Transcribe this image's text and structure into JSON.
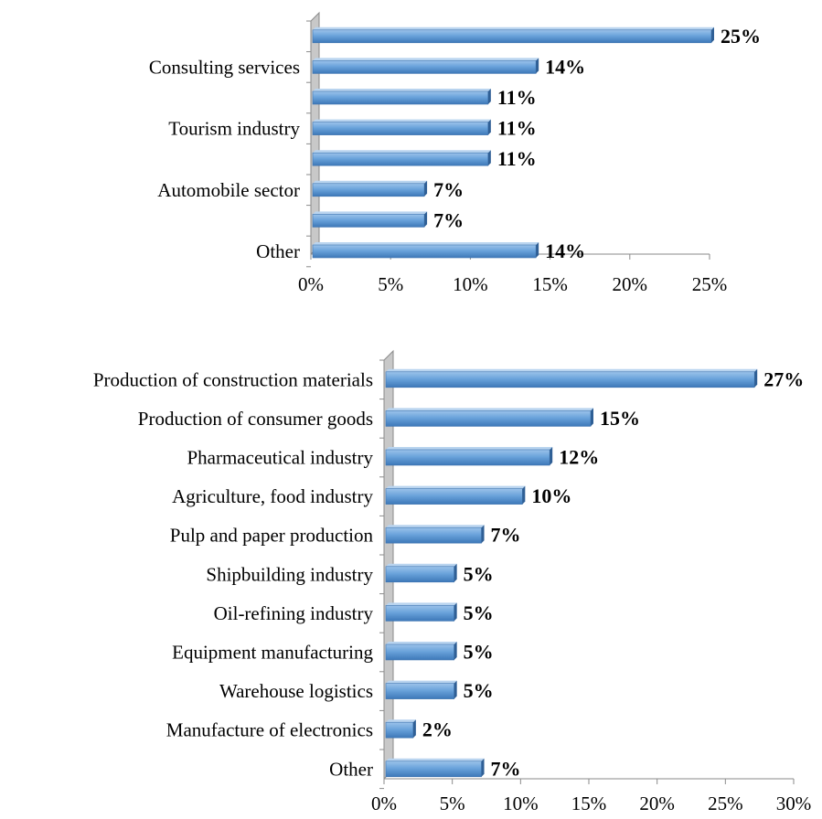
{
  "chart_data": [
    {
      "type": "bar",
      "orientation": "horizontal",
      "style": "3d",
      "categories": [
        "",
        "Consulting services",
        "",
        "Tourism industry",
        "",
        "Automobile sector",
        "",
        "Other"
      ],
      "values": [
        25,
        14,
        11,
        11,
        11,
        7,
        7,
        14
      ],
      "data_labels": [
        "25%",
        "14%",
        "11%",
        "11%",
        "11%",
        "7%",
        "7%",
        "14%"
      ],
      "xlim": [
        0,
        25
      ],
      "xticks": [
        "0%",
        "5%",
        "10%",
        "15%",
        "20%",
        "25%"
      ],
      "grid": false,
      "bar_color": "#5b9bd5"
    },
    {
      "type": "bar",
      "orientation": "horizontal",
      "style": "3d",
      "categories": [
        "Production of construction materials",
        "Production of consumer goods",
        "Pharmaceutical industry",
        "Agriculture, food industry",
        "Pulp and paper production",
        "Shipbuilding industry",
        "Oil-refining industry",
        "Equipment manufacturing",
        "Warehouse logistics",
        "Manufacture of electronics",
        "Other"
      ],
      "values": [
        27,
        15,
        12,
        10,
        7,
        5,
        5,
        5,
        5,
        2,
        7
      ],
      "data_labels": [
        "27%",
        "15%",
        "12%",
        "10%",
        "7%",
        "5%",
        "5%",
        "5%",
        "5%",
        "2%",
        "7%"
      ],
      "xlim": [
        0,
        30
      ],
      "xticks": [
        "0%",
        "5%",
        "10%",
        "15%",
        "20%",
        "25%",
        "30%"
      ],
      "grid": false,
      "bar_color": "#5b9bd5"
    }
  ]
}
